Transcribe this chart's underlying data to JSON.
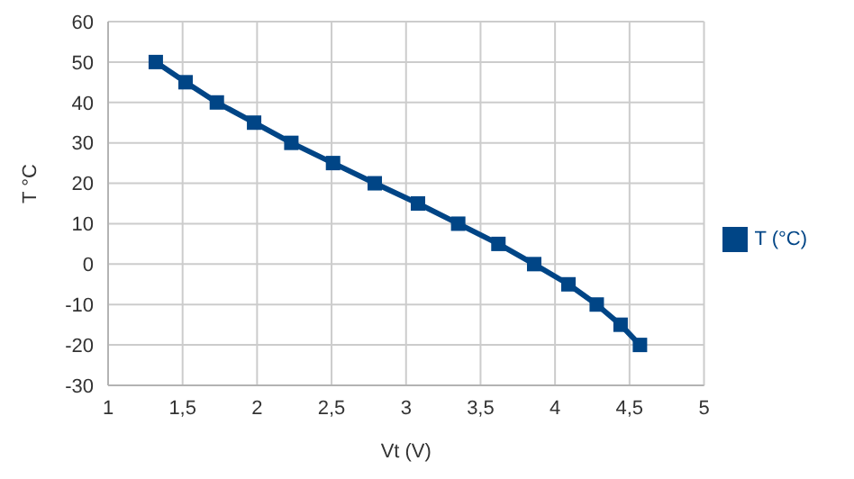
{
  "chart_data": {
    "type": "line",
    "xlabel": "Vt (V)",
    "ylabel": "T °C",
    "x": [
      1.32,
      1.52,
      1.73,
      1.98,
      2.23,
      2.51,
      2.79,
      3.08,
      3.35,
      3.62,
      3.86,
      4.09,
      4.28,
      4.44,
      4.57
    ],
    "series": [
      {
        "name": "T (°C)",
        "color": "#004586",
        "values": [
          50,
          45,
          40,
          35,
          30,
          25,
          20,
          15,
          10,
          5,
          0,
          -5,
          -10,
          -15,
          -20
        ]
      }
    ],
    "xlim": [
      1,
      5
    ],
    "xticks": [
      1,
      {
        "value": 1.5,
        "label": "1,5"
      },
      2,
      {
        "value": 2.5,
        "label": "2,5"
      },
      3,
      {
        "value": 3.5,
        "label": "3,5"
      },
      4,
      {
        "value": 4.5,
        "label": "4,5"
      },
      5
    ],
    "ylim": [
      -30,
      60
    ],
    "yticks": [
      -30,
      -20,
      -10,
      0,
      10,
      20,
      30,
      40,
      50,
      60
    ],
    "grid": true,
    "legend": "right",
    "marker": "square",
    "line_style": "solid"
  }
}
